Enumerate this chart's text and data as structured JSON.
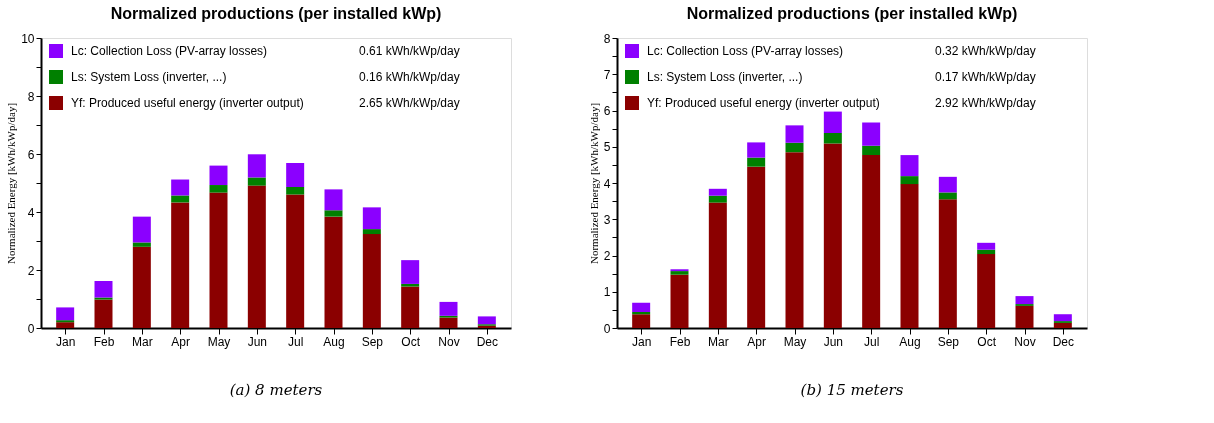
{
  "chart_data": [
    {
      "type": "bar",
      "title": "Normalized productions (per installed kWp)",
      "ylabel": "Normalized Energy [kWh/kWp/day]",
      "stacked": true,
      "legend": "top left",
      "grid": false,
      "categories": [
        "Jan",
        "Feb",
        "Mar",
        "Apr",
        "May",
        "Jun",
        "Jul",
        "Aug",
        "Sep",
        "Oct",
        "Nov",
        "Dec"
      ],
      "series": [
        {
          "name": "Yf: Produced useful energy  (inverter output)",
          "color": "#8b0000",
          "values": [
            0.2,
            0.98,
            2.8,
            4.33,
            4.67,
            4.91,
            4.6,
            3.84,
            3.24,
            1.43,
            0.36,
            0.08
          ]
        },
        {
          "name": "Ls: System Loss  (inverter, ...)",
          "color": "#008000",
          "values": [
            0.07,
            0.07,
            0.15,
            0.24,
            0.26,
            0.28,
            0.26,
            0.22,
            0.17,
            0.09,
            0.06,
            0.05
          ]
        },
        {
          "name": "Lc: Collection Loss (PV-array losses)",
          "color": "#8b00ff",
          "values": [
            0.44,
            0.57,
            0.89,
            0.55,
            0.67,
            0.8,
            0.83,
            0.72,
            0.75,
            0.82,
            0.48,
            0.27
          ]
        }
      ],
      "ylim": [
        0,
        10
      ],
      "yticks": [
        0,
        {
          "value": 1,
          "label": null
        },
        2,
        {
          "value": 3,
          "label": null
        },
        4,
        {
          "value": 5,
          "label": null
        },
        6,
        {
          "value": 7,
          "label": null
        },
        8,
        {
          "value": 9,
          "label": null
        },
        10
      ],
      "annotations": [
        "2.65 kWh/kWp/day",
        "0.16 kWh/kWp/day",
        "0.61 kWh/kWp/day",
        "(a) 8 meters"
      ]
    },
    {
      "type": "bar",
      "title": "Normalized productions (per installed kWp)",
      "ylabel": "Normalized Energy [kWh/kWp/day]",
      "stacked": true,
      "legend": "top left",
      "grid": false,
      "categories": [
        "Jan",
        "Feb",
        "Mar",
        "Apr",
        "May",
        "Jun",
        "Jul",
        "Aug",
        "Sep",
        "Oct",
        "Nov",
        "Dec"
      ],
      "series": [
        {
          "name": "Yf: Produced useful energy  (inverter output)",
          "color": "#8b0000",
          "values": [
            0.38,
            1.47,
            3.46,
            4.45,
            4.85,
            5.09,
            4.77,
            3.97,
            3.55,
            2.04,
            0.61,
            0.14
          ]
        },
        {
          "name": "Ls: System Loss  (inverter, ...)",
          "color": "#008000",
          "values": [
            0.06,
            0.1,
            0.19,
            0.25,
            0.26,
            0.29,
            0.26,
            0.22,
            0.19,
            0.12,
            0.05,
            0.05
          ]
        },
        {
          "name": "Lc: Collection Loss (PV-array losses)",
          "color": "#8b00ff",
          "values": [
            0.26,
            0.05,
            0.19,
            0.42,
            0.48,
            0.59,
            0.64,
            0.58,
            0.43,
            0.19,
            0.22,
            0.19
          ]
        }
      ],
      "ylim": [
        0,
        8
      ],
      "yticks": [
        0,
        {
          "value": 0.5,
          "label": null
        },
        1,
        {
          "value": 1.5,
          "label": null
        },
        2,
        {
          "value": 2.5,
          "label": null
        },
        3,
        {
          "value": 3.5,
          "label": null
        },
        4,
        {
          "value": 4.5,
          "label": null
        },
        5,
        {
          "value": 5.5,
          "label": null
        },
        6,
        {
          "value": 6.5,
          "label": null
        },
        7,
        {
          "value": 7.5,
          "label": null
        },
        8
      ],
      "annotations": [
        "2.92 kWh/kWp/day",
        "0.17 kWh/kWp/day",
        "0.32 kWh/kWp/day",
        "(b) 15 meters"
      ]
    }
  ]
}
